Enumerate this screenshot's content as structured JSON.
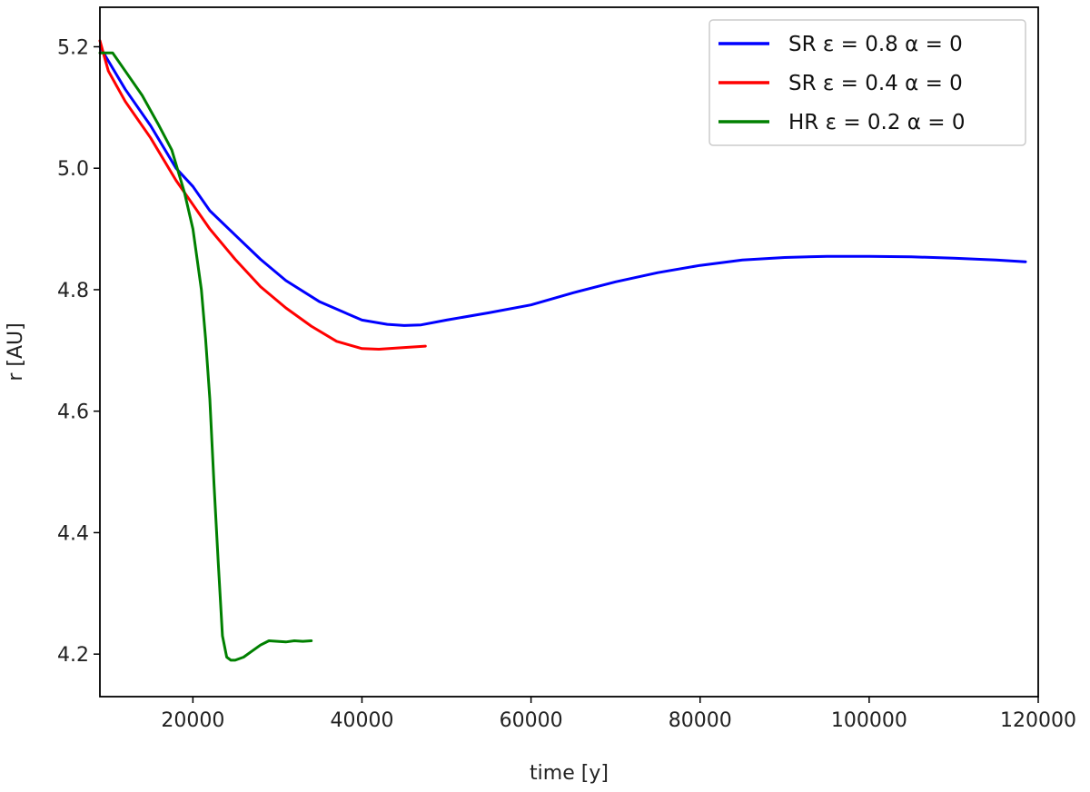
{
  "chart_data": {
    "type": "line",
    "title": "",
    "xlabel": "time [y]",
    "ylabel": "r [AU]",
    "xlim": [
      9000,
      120000
    ],
    "ylim": [
      4.13,
      5.265
    ],
    "xticks": [
      20000,
      40000,
      60000,
      80000,
      100000,
      120000
    ],
    "xtick_labels": [
      "20000",
      "40000",
      "60000",
      "80000",
      "100000",
      "120000"
    ],
    "yticks": [
      4.2,
      4.4,
      4.6,
      4.8,
      5.0,
      5.2
    ],
    "ytick_labels": [
      "4.2",
      "4.4",
      "4.6",
      "4.8",
      "5.0",
      "5.2"
    ],
    "grid": false,
    "legend_position": "top-right",
    "series": [
      {
        "name": "SR  ε = 0.8  α = 0",
        "color": "#0000ff",
        "x": [
          9000,
          12000,
          15000,
          18000,
          20000,
          22000,
          25000,
          28000,
          31000,
          35000,
          40000,
          43000,
          45000,
          47000,
          50000,
          55000,
          60000,
          65000,
          70000,
          75000,
          80000,
          85000,
          90000,
          95000,
          100000,
          105000,
          110000,
          115000,
          118500
        ],
        "y": [
          5.2,
          5.13,
          5.07,
          5.0,
          4.97,
          4.93,
          4.89,
          4.85,
          4.815,
          4.78,
          4.75,
          4.743,
          4.741,
          4.742,
          4.75,
          4.762,
          4.775,
          4.795,
          4.813,
          4.828,
          4.84,
          4.849,
          4.853,
          4.855,
          4.855,
          4.854,
          4.852,
          4.849,
          4.846
        ]
      },
      {
        "name": "SR  ε = 0.4  α = 0",
        "color": "#ff0000",
        "x": [
          9000,
          10000,
          12000,
          15000,
          18000,
          20000,
          22000,
          25000,
          28000,
          31000,
          34000,
          37000,
          40000,
          42000,
          44000,
          47500
        ],
        "y": [
          5.21,
          5.16,
          5.11,
          5.05,
          4.98,
          4.94,
          4.9,
          4.85,
          4.805,
          4.77,
          4.74,
          4.715,
          4.703,
          4.702,
          4.704,
          4.707
        ]
      },
      {
        "name": "HR ε = 0.2   α = 0",
        "color": "#008000",
        "x": [
          9000,
          10500,
          12000,
          14000,
          16000,
          17500,
          19000,
          20000,
          21000,
          21500,
          22000,
          22500,
          23000,
          23500,
          24000,
          24500,
          25000,
          26000,
          27000,
          28000,
          29000,
          30000,
          31000,
          32000,
          33000,
          34000
        ],
        "y": [
          5.19,
          5.19,
          5.16,
          5.12,
          5.07,
          5.03,
          4.96,
          4.9,
          4.8,
          4.72,
          4.62,
          4.48,
          4.35,
          4.23,
          4.195,
          4.19,
          4.19,
          4.195,
          4.205,
          4.215,
          4.222,
          4.221,
          4.22,
          4.222,
          4.221,
          4.222
        ]
      }
    ]
  }
}
